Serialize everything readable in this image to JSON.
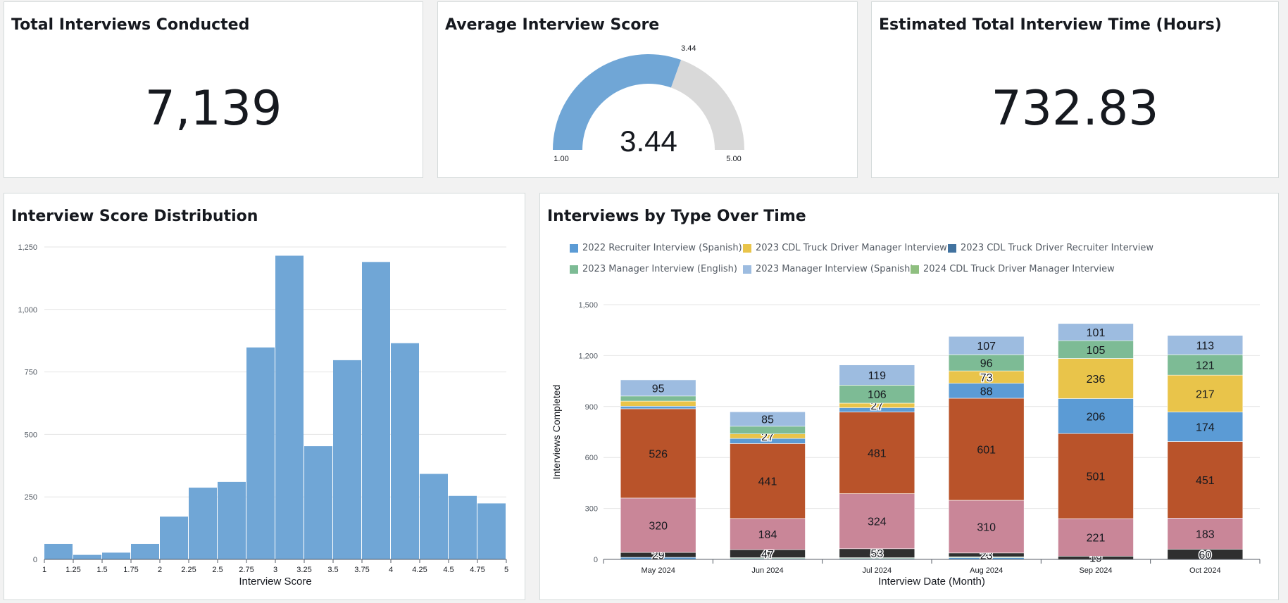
{
  "kpi_total": {
    "title": "Total Interviews Conducted",
    "value": "7,139"
  },
  "kpi_score": {
    "title": "Average Interview Score",
    "value": "3.44",
    "marker_label": "3.44",
    "min_label": "1.00",
    "max_label": "5.00",
    "min": 1,
    "max": 5,
    "score": 3.44,
    "fill_color": "#70a6d6",
    "track_color": "#d9d9d9"
  },
  "kpi_time": {
    "title": "Estimated Total Interview Time (Hours)",
    "value": "732.83"
  },
  "histogram": {
    "title": "Interview Score Distribution"
  },
  "stacked": {
    "title": "Interviews by Type Over Time"
  },
  "chart_data": [
    {
      "type": "bar",
      "title": "Interview Score Distribution",
      "xlabel": "Interview Score",
      "ylabel": "",
      "x_ticks": [
        "1",
        "1.25",
        "1.5",
        "1.75",
        "2",
        "2.25",
        "2.5",
        "2.75",
        "3",
        "3.25",
        "3.5",
        "3.75",
        "4",
        "4.25",
        "4.5",
        "4.75",
        "5"
      ],
      "y_ticks": [
        "0",
        "250",
        "500",
        "750",
        "1,000",
        "1,250"
      ],
      "bin_edges": [
        1,
        1.25,
        1.5,
        1.75,
        2,
        2.25,
        2.5,
        2.75,
        3,
        3.25,
        3.5,
        3.75,
        4,
        4.25,
        4.5,
        4.75,
        5
      ],
      "bins": [
        {
          "start": 1.0,
          "end": 1.25,
          "value": 62
        },
        {
          "start": 1.25,
          "end": 1.5,
          "value": 18
        },
        {
          "start": 1.5,
          "end": 1.75,
          "value": 27
        },
        {
          "start": 1.75,
          "end": 2.0,
          "value": 62
        },
        {
          "start": 2.0,
          "end": 2.25,
          "value": 171
        },
        {
          "start": 2.25,
          "end": 2.5,
          "value": 287
        },
        {
          "start": 2.5,
          "end": 2.75,
          "value": 310
        },
        {
          "start": 2.75,
          "end": 3.0,
          "value": 848
        },
        {
          "start": 3.0,
          "end": 3.25,
          "value": 1215
        },
        {
          "start": 3.25,
          "end": 3.5,
          "value": 453
        },
        {
          "start": 3.5,
          "end": 3.75,
          "value": 797
        },
        {
          "start": 3.75,
          "end": 4.0,
          "value": 1190
        },
        {
          "start": 4.0,
          "end": 4.25,
          "value": 865
        },
        {
          "start": 4.25,
          "end": 4.5,
          "value": 342
        },
        {
          "start": 4.5,
          "end": 4.75,
          "value": 254
        },
        {
          "start": 4.75,
          "end": 5.0,
          "value": 224
        }
      ],
      "ylim": [
        0,
        1250
      ],
      "grid": true,
      "color": "#70a6d6"
    },
    {
      "type": "bar",
      "stacked": true,
      "title": "Interviews by Type Over Time",
      "xlabel": "Interview Date (Month)",
      "ylabel": "Interviews Completed",
      "categories": [
        "May 2024",
        "Jun 2024",
        "Jul 2024",
        "Aug 2024",
        "Sep 2024",
        "Oct 2024"
      ],
      "y_ticks": [
        "0",
        "300",
        "600",
        "900",
        "1,200",
        "1,500"
      ],
      "ylim": [
        0,
        1500
      ],
      "legend_position": "top",
      "legend": [
        {
          "name": "2022 Recruiter Interview (Spanish)",
          "color": "#5b9bd5"
        },
        {
          "name": "2023 CDL Truck Driver Manager Interview",
          "color": "#e9c44a"
        },
        {
          "name": "2023 CDL Truck Driver Recruiter Interview",
          "color": "#41729f"
        },
        {
          "name": "2023 Manager Interview (English)",
          "color": "#7dbb95"
        },
        {
          "name": "2023 Manager Interview (Spanish)",
          "color": "#9dbce0"
        },
        {
          "name": "2024 CDL Truck Driver Manager Interview",
          "color": "#8fbf80"
        }
      ],
      "series": [
        {
          "color": "#5b9bd5",
          "values": [
            12,
            5,
            5,
            10,
            0,
            0
          ]
        },
        {
          "color": "#7dbb95",
          "values": [
            0,
            5,
            5,
            5,
            0,
            0
          ]
        },
        {
          "color": "#2f2f2f",
          "values": [
            29,
            47,
            53,
            23,
            19,
            60
          ]
        },
        {
          "color": "#c98698",
          "values": [
            320,
            184,
            324,
            310,
            221,
            183
          ]
        },
        {
          "color": "#b9532a",
          "values": [
            526,
            441,
            481,
            601,
            501,
            451
          ]
        },
        {
          "color": "#5b9bd5",
          "values": [
            15,
            30,
            25,
            88,
            206,
            174
          ]
        },
        {
          "color": "#e9c44a",
          "values": [
            30,
            27,
            27,
            73,
            236,
            217
          ]
        },
        {
          "color": "#7dbb95",
          "values": [
            30,
            45,
            106,
            96,
            105,
            121
          ]
        },
        {
          "color": "#9dbce0",
          "values": [
            95,
            85,
            119,
            107,
            101,
            113
          ]
        }
      ],
      "labels": [
        [
          null,
          null,
          "29",
          "320",
          "526",
          null,
          null,
          null,
          "95"
        ],
        [
          null,
          null,
          "47",
          "184",
          "441",
          null,
          "27",
          null,
          "85"
        ],
        [
          null,
          null,
          "53",
          "324",
          "481",
          null,
          "27",
          "106",
          "119"
        ],
        [
          null,
          null,
          "23",
          "310",
          "601",
          "88",
          "73",
          "96",
          "107"
        ],
        [
          null,
          null,
          "19",
          "221",
          "501",
          "206",
          "236",
          "105",
          "101"
        ],
        [
          null,
          null,
          "60",
          "183",
          "451",
          "174",
          "217",
          "121",
          "113"
        ]
      ]
    }
  ]
}
